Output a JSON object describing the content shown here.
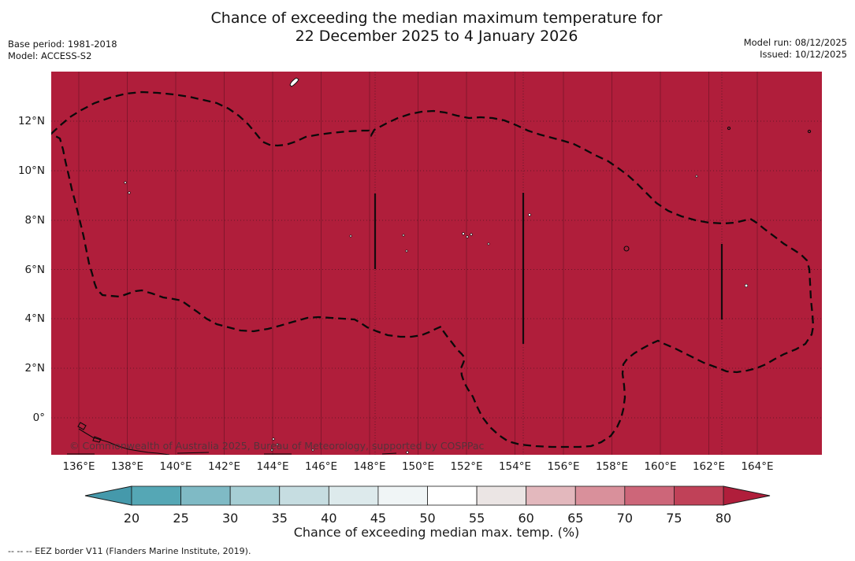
{
  "title": {
    "line1": "Chance of exceeding the median maximum temperature for",
    "line2": "22 December 2025 to 4 January 2026"
  },
  "meta_left": {
    "base_period": "Base period: 1981-2018",
    "model": "Model: ACCESS-S2"
  },
  "meta_right": {
    "model_run": "Model run: 08/12/2025",
    "issued": "Issued: 10/12/2025"
  },
  "map": {
    "x_tick_labels": [
      "136°E",
      "138°E",
      "140°E",
      "142°E",
      "144°E",
      "146°E",
      "148°E",
      "150°E",
      "152°E",
      "154°E",
      "156°E",
      "158°E",
      "160°E",
      "162°E",
      "164°E"
    ],
    "y_tick_labels": [
      "12°N",
      "10°N",
      "8°N",
      "6°N",
      "4°N",
      "2°N",
      "0°"
    ],
    "watermark": "© Commonwealth of Australia 2025, Bureau of Meteorology, supported by COSPPac",
    "fill_color": "#b01e3b",
    "eez_border_color": "#0a0a0a"
  },
  "colorbar": {
    "ticks": [
      "20",
      "25",
      "30",
      "35",
      "40",
      "45",
      "50",
      "55",
      "60",
      "65",
      "70",
      "75",
      "80"
    ],
    "label": "Chance of exceeding median max. temp. (%)",
    "segment_colors": [
      "#55a7b5",
      "#7fbac5",
      "#a6ced4",
      "#c6dde1",
      "#ddeaec",
      "#f0f5f6",
      "#ffffff",
      "#ebe5e4",
      "#e3b8bd",
      "#d9909b",
      "#cd6679",
      "#c04158"
    ],
    "left_arrow_color": "#4599ab",
    "right_arrow_color": "#b01e3b",
    "outline_color": "#1a1a1a"
  },
  "footnote": "--  --  -- EEZ border V11 (Flanders Marine Institute, 2019).",
  "chart_data": {
    "type": "heatmap",
    "title": "Chance of exceeding the median maximum temperature for 22 December 2025 to 4 January 2026",
    "xlabel_ticks_lon": [
      136,
      138,
      140,
      142,
      144,
      146,
      148,
      150,
      152,
      154,
      156,
      158,
      160,
      162,
      164
    ],
    "ylabel_ticks_lat": [
      12,
      10,
      8,
      6,
      4,
      2,
      0
    ],
    "lon_range_deg_e": [
      134.9,
      166.7
    ],
    "lat_range_deg_n": [
      -1.5,
      14.0
    ],
    "field_description": "Chance of exceeding median max. temp. (%); entire mapped region shaded in the > 80% class",
    "field_uniform_value": "> 80",
    "colorbar_scale_percent": [
      20,
      25,
      30,
      35,
      40,
      45,
      50,
      55,
      60,
      65,
      70,
      75,
      80
    ],
    "overlays": [
      "EEZ border V11 (dashed)",
      "sub-EEZ boundary lines (solid/dotted verticals)",
      "small island coastlines"
    ]
  }
}
